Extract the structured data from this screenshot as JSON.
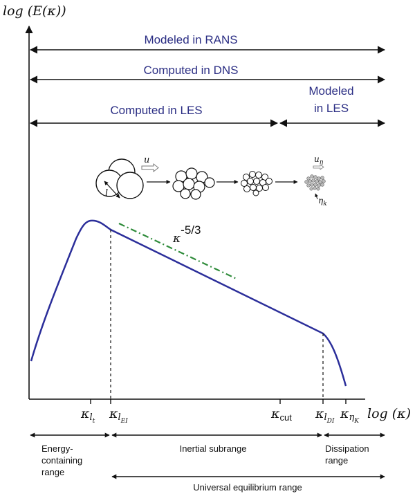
{
  "axes": {
    "y_label": "log (E(κ))",
    "x_label": "log (κ)"
  },
  "ranges": {
    "rans": "Modeled in RANS",
    "dns": "Computed in DNS",
    "les_computed": "Computed in LES",
    "les_modeled_line1": "Modeled",
    "les_modeled_line2": "in LES"
  },
  "slope_label": {
    "base": "κ",
    "exponent": "-5/3"
  },
  "eddy_labels": {
    "large_scale_length": "l",
    "velocity": "u",
    "kolmogorov_velocity": "u",
    "kolmogorov_velocity_sub": "η",
    "kolmogorov_length": "η",
    "kolmogorov_length_sub": "k"
  },
  "ticks": [
    {
      "base": "κ",
      "sub": "l",
      "subsub": "t"
    },
    {
      "base": "κ",
      "sub": "l",
      "subsub": "EI"
    },
    {
      "base": "κ",
      "sub": "cut",
      "subsub": ""
    },
    {
      "base": "κ",
      "sub": "l",
      "subsub": "DI"
    },
    {
      "base": "κ",
      "sub": "η",
      "subsub": "K"
    }
  ],
  "bottom_ranges": {
    "energy_line1": "Energy-",
    "energy_line2": "containing",
    "energy_line3": "range",
    "inertial": "Inertial subrange",
    "dissipation_line1": "Dissipation",
    "dissipation_line2": "range",
    "universal": "Universal equilibrium range"
  },
  "colors": {
    "range_text": "#2b2e84",
    "spectrum": "#2b2e9a",
    "slope_line": "#2e8b3a",
    "axes": "#111111"
  }
}
